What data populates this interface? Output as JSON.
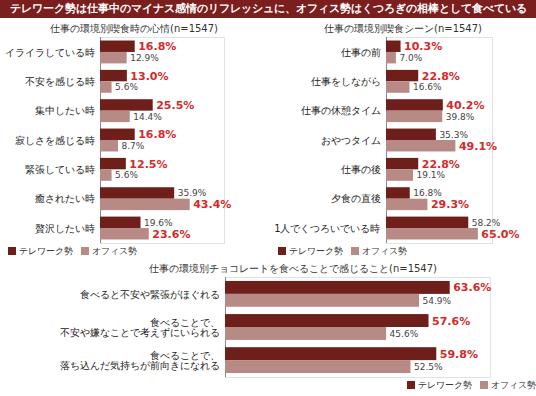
{
  "title": "テレワーク勢は仕事中のマイナス感情のリフレッシュに、オフィス勢はくつろぎの相棒として食べている",
  "chart_data": [
    {
      "type": "bar",
      "orientation": "horizontal",
      "title": "仕事の環境別喫食時の心情(n=1547)",
      "categories": [
        "イライラしている時",
        "不安を感じる時",
        "集中したい時",
        "寂しさを感じる時",
        "緊張している時",
        "癒されたい時",
        "贅沢したい時"
      ],
      "series": [
        {
          "name": "テレワーク勢",
          "color": "#6e1f1a",
          "values": [
            16.8,
            13.0,
            25.5,
            16.8,
            12.5,
            35.9,
            19.6
          ],
          "value_labels": [
            "16.8%",
            "13.0%",
            "25.5%",
            "16.8%",
            "12.5%",
            "35.9%",
            "19.6%"
          ]
        },
        {
          "name": "オフィス勢",
          "color": "#b88a86",
          "values": [
            12.9,
            5.6,
            14.4,
            8.7,
            5.6,
            43.4,
            23.6
          ],
          "value_labels": [
            "12.9%",
            "5.6%",
            "14.4%",
            "8.7%",
            "5.6%",
            "43.4%",
            "23.6%"
          ]
        }
      ],
      "xlim": [
        0,
        60
      ],
      "xticks": [],
      "data_labels": true,
      "tick_labels": "y",
      "legend": "bottom"
    },
    {
      "type": "bar",
      "orientation": "horizontal",
      "title": "仕事の環境別喫食シーン(n=1547)",
      "categories": [
        "仕事の前",
        "仕事をしながら",
        "仕事の休憩タイム",
        "おやつタイム",
        "仕事の後",
        "夕食の直後",
        "1人でくつろいでいる時"
      ],
      "series": [
        {
          "name": "テレワーク勢",
          "color": "#6e1f1a",
          "values": [
            10.3,
            22.8,
            40.2,
            35.3,
            22.8,
            16.8,
            58.2
          ],
          "value_labels": [
            "10.3%",
            "22.8%",
            "40.2%",
            "35.3%",
            "22.8%",
            "16.8%",
            "58.2%"
          ]
        },
        {
          "name": "オフィス勢",
          "color": "#b88a86",
          "values": [
            7.0,
            16.6,
            39.8,
            49.1,
            19.1,
            29.3,
            65.0
          ],
          "value_labels": [
            "7.0%",
            "16.6%",
            "39.8%",
            "49.1%",
            "19.1%",
            "29.3%",
            "65.0%"
          ]
        }
      ],
      "xlim": [
        0,
        75
      ],
      "xticks": [],
      "data_labels": true,
      "tick_labels": "y",
      "legend": "bottom"
    },
    {
      "type": "bar",
      "orientation": "horizontal",
      "title": "仕事の環境別チョコレートを食べることで感じること(n=1547)",
      "categories": [
        "食べると不安や緊張がほぐれる",
        "食べることで、不安や嫌なことで考えずにいられる",
        "食べることで、落ち込んだ気持ちが前向きになれる"
      ],
      "series": [
        {
          "name": "テレワーク勢",
          "color": "#6e1f1a",
          "values": [
            63.6,
            57.6,
            59.8
          ],
          "value_labels": [
            "63.6%",
            "57.6%",
            "59.8%"
          ]
        },
        {
          "name": "オフィス勢",
          "color": "#b88a86",
          "values": [
            54.9,
            45.6,
            52.5
          ],
          "value_labels": [
            "54.9%",
            "45.6%",
            "52.5%"
          ]
        }
      ],
      "xlim": [
        0,
        75
      ],
      "xticks": [],
      "data_labels": true,
      "tick_labels": "y",
      "legend": "bottom"
    }
  ]
}
